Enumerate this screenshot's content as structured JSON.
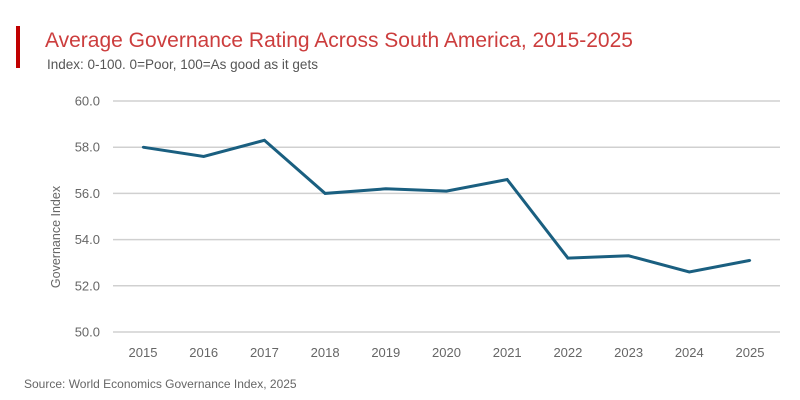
{
  "header": {
    "title": "Average Governance Rating Across South America, 2015-2025",
    "subtitle": "Index: 0-100. 0=Poor, 100=As good as it gets"
  },
  "footer": {
    "source": "Source: World Economics Governance Index, 2025"
  },
  "colors": {
    "accent": "#c00000",
    "title": "#cc3d3d",
    "line": "#1a5f80",
    "grid": "#d0d0d0"
  },
  "chart_data": {
    "type": "line",
    "title": "Average Governance Rating Across South America, 2015-2025",
    "subtitle": "Index: 0-100. 0=Poor, 100=As good as it gets",
    "xlabel": "",
    "ylabel": "Governance Index",
    "x": [
      "2015",
      "2016",
      "2017",
      "2018",
      "2019",
      "2020",
      "2021",
      "2022",
      "2023",
      "2024",
      "2025"
    ],
    "series": [
      {
        "name": "Governance Index",
        "values": [
          58.0,
          57.6,
          58.3,
          56.0,
          56.2,
          56.1,
          56.6,
          53.2,
          53.3,
          52.6,
          53.1
        ]
      }
    ],
    "ylim": [
      50.0,
      60.0
    ],
    "yticks": [
      "50.0",
      "52.0",
      "54.0",
      "56.0",
      "58.0",
      "60.0"
    ],
    "grid": true,
    "legend": "none"
  }
}
